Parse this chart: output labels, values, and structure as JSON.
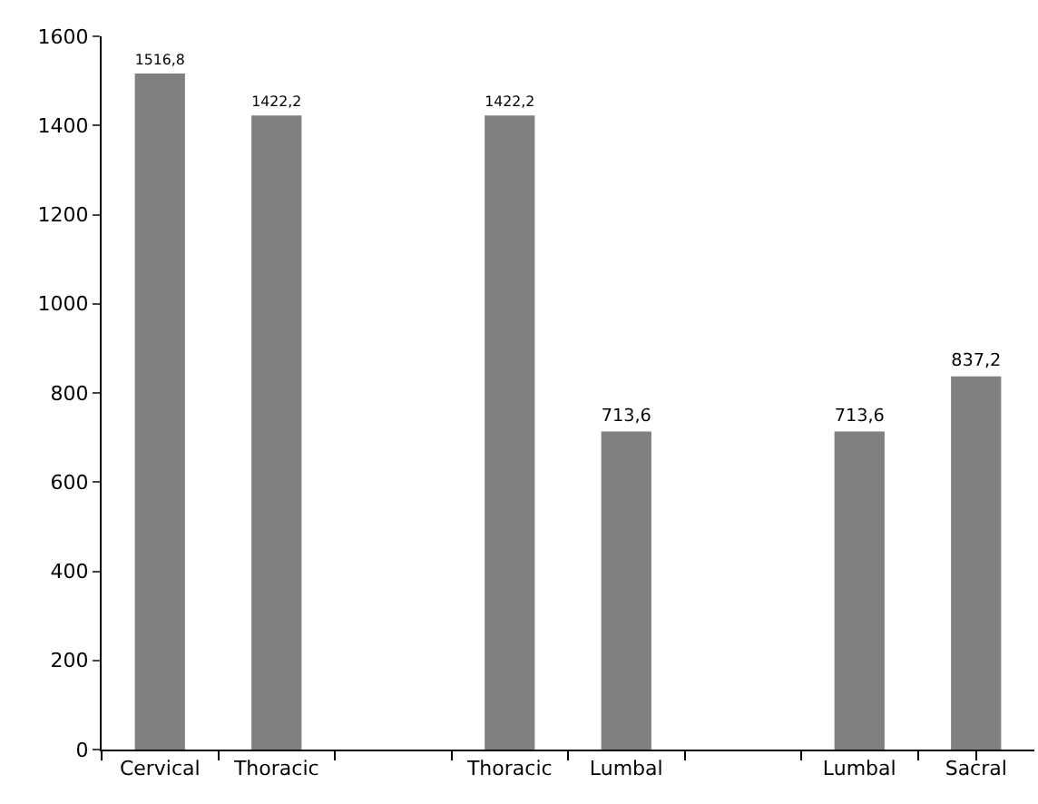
{
  "chart_data": {
    "type": "bar",
    "categories": [
      "Cervical",
      "Thoracic",
      null,
      "Thoracic",
      "Lumbal",
      null,
      "Lumbal",
      "Sacral"
    ],
    "values": [
      1516.8,
      1422.2,
      null,
      1422.2,
      713.6,
      null,
      713.6,
      837.2
    ],
    "value_labels": [
      "1516,8",
      "1422,2",
      null,
      "1422,2",
      "713,6",
      null,
      "713,6",
      "837,2"
    ],
    "color": "#808080",
    "ylim": [
      0,
      1600
    ],
    "yticks": [
      0,
      200,
      400,
      600,
      800,
      1000,
      1200,
      1400,
      1600
    ],
    "grid": false,
    "legend": false
  }
}
